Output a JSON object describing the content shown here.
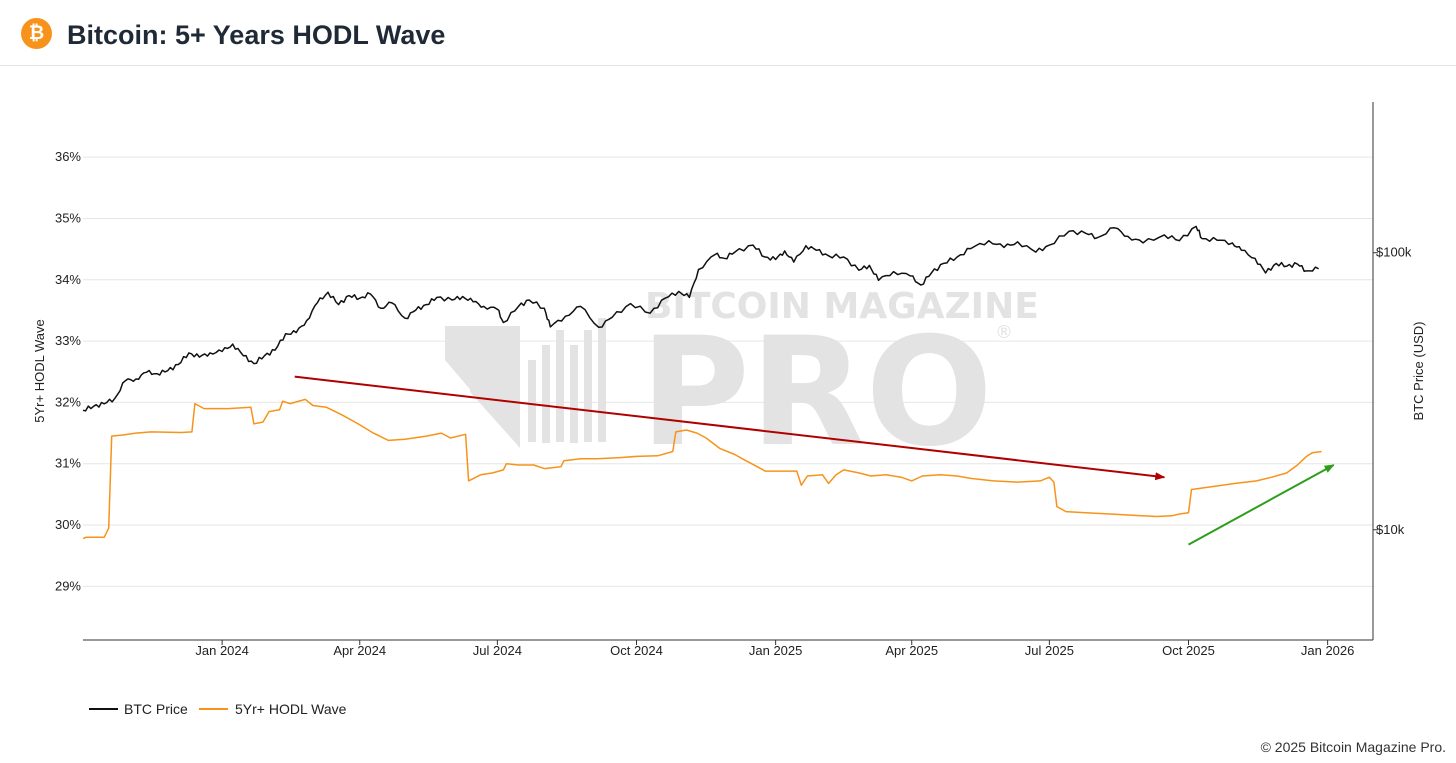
{
  "header": {
    "title": "Bitcoin: 5+ Years HODL Wave",
    "logo_glyph": "₿"
  },
  "watermark": {
    "line1": "BITCOIN MAGAZINE",
    "line2": "PRO",
    "reg": "®"
  },
  "footer": {
    "copyright": "© 2025 Bitcoin Magazine Pro."
  },
  "chart_data": {
    "type": "line",
    "title": "Bitcoin: 5+ Years HODL Wave",
    "x_start": "2023-10-01",
    "x_end": "2026-01-31",
    "x_ticks": [
      {
        "date": "2024-01-01",
        "label": "Jan 2024"
      },
      {
        "date": "2024-04-01",
        "label": "Apr 2024"
      },
      {
        "date": "2024-07-01",
        "label": "Jul 2024"
      },
      {
        "date": "2024-10-01",
        "label": "Oct 2024"
      },
      {
        "date": "2025-01-01",
        "label": "Jan 2025"
      },
      {
        "date": "2025-04-01",
        "label": "Apr 2025"
      },
      {
        "date": "2025-07-01",
        "label": "Jul 2025"
      },
      {
        "date": "2025-10-01",
        "label": "Oct 2025"
      },
      {
        "date": "2026-01-01",
        "label": "Jan 2026"
      }
    ],
    "y_left": {
      "label": "5Yr+ HODL Wave",
      "range": [
        28.125,
        36.9
      ],
      "ticks": [
        29,
        30,
        31,
        32,
        33,
        34,
        35,
        36
      ],
      "tick_labels": [
        "29%",
        "30%",
        "31%",
        "32%",
        "33%",
        "34%",
        "35%",
        "36%"
      ]
    },
    "y_right": {
      "label": "BTC Price (USD)",
      "scale": "log",
      "range": [
        4000,
        350000
      ],
      "ticks": [
        10000,
        100000
      ],
      "tick_labels": [
        "$10k",
        "$100k"
      ]
    },
    "series": [
      {
        "name": "BTC Price",
        "color": "#111111",
        "axis": "right",
        "points": [
          [
            "2023-10-01",
            27000
          ],
          [
            "2023-10-08",
            27900
          ],
          [
            "2023-10-15",
            28500
          ],
          [
            "2023-10-22",
            29800
          ],
          [
            "2023-10-29",
            34500
          ],
          [
            "2023-11-05",
            35000
          ],
          [
            "2023-11-12",
            37000
          ],
          [
            "2023-11-19",
            36600
          ],
          [
            "2023-11-26",
            37500
          ],
          [
            "2023-12-03",
            39500
          ],
          [
            "2023-12-10",
            43500
          ],
          [
            "2023-12-17",
            42000
          ],
          [
            "2023-12-24",
            43500
          ],
          [
            "2024-01-01",
            44000
          ],
          [
            "2024-01-08",
            46800
          ],
          [
            "2024-01-15",
            42500
          ],
          [
            "2024-01-22",
            39800
          ],
          [
            "2024-01-29",
            42500
          ],
          [
            "2024-02-05",
            44500
          ],
          [
            "2024-02-12",
            51000
          ],
          [
            "2024-02-19",
            51500
          ],
          [
            "2024-02-26",
            57000
          ],
          [
            "2024-03-04",
            66000
          ],
          [
            "2024-03-11",
            72000
          ],
          [
            "2024-03-18",
            65000
          ],
          [
            "2024-03-25",
            70000
          ],
          [
            "2024-04-01",
            68500
          ],
          [
            "2024-04-08",
            71000
          ],
          [
            "2024-04-15",
            63000
          ],
          [
            "2024-04-22",
            66000
          ],
          [
            "2024-05-01",
            58000
          ],
          [
            "2024-05-08",
            62000
          ],
          [
            "2024-05-15",
            65000
          ],
          [
            "2024-05-22",
            69000
          ],
          [
            "2024-06-01",
            67500
          ],
          [
            "2024-06-08",
            69500
          ],
          [
            "2024-06-15",
            66500
          ],
          [
            "2024-06-22",
            64000
          ],
          [
            "2024-07-01",
            62500
          ],
          [
            "2024-07-05",
            56000
          ],
          [
            "2024-07-15",
            64000
          ],
          [
            "2024-07-22",
            67500
          ],
          [
            "2024-08-01",
            63000
          ],
          [
            "2024-08-05",
            54000
          ],
          [
            "2024-08-15",
            59000
          ],
          [
            "2024-08-25",
            64000
          ],
          [
            "2024-09-06",
            53800
          ],
          [
            "2024-09-15",
            58500
          ],
          [
            "2024-09-27",
            65500
          ],
          [
            "2024-10-10",
            60500
          ],
          [
            "2024-10-20",
            68500
          ],
          [
            "2024-10-29",
            72500
          ],
          [
            "2024-11-05",
            69000
          ],
          [
            "2024-11-11",
            87000
          ],
          [
            "2024-11-22",
            98500
          ],
          [
            "2024-11-28",
            95500
          ],
          [
            "2024-12-05",
            100500
          ],
          [
            "2024-12-17",
            106500
          ],
          [
            "2024-12-25",
            96500
          ],
          [
            "2025-01-01",
            94500
          ],
          [
            "2025-01-07",
            101500
          ],
          [
            "2025-01-13",
            92500
          ],
          [
            "2025-01-21",
            106000
          ],
          [
            "2025-01-28",
            102000
          ],
          [
            "2025-02-05",
            97500
          ],
          [
            "2025-02-15",
            96500
          ],
          [
            "2025-02-25",
            86500
          ],
          [
            "2025-03-04",
            90000
          ],
          [
            "2025-03-10",
            79500
          ],
          [
            "2025-03-20",
            85500
          ],
          [
            "2025-03-31",
            82500
          ],
          [
            "2025-04-07",
            76500
          ],
          [
            "2025-04-14",
            84500
          ],
          [
            "2025-04-22",
            91500
          ],
          [
            "2025-05-01",
            96500
          ],
          [
            "2025-05-10",
            103500
          ],
          [
            "2025-05-22",
            110500
          ],
          [
            "2025-06-01",
            104500
          ],
          [
            "2025-06-10",
            109500
          ],
          [
            "2025-06-22",
            100500
          ],
          [
            "2025-07-01",
            106500
          ],
          [
            "2025-07-14",
            119500
          ],
          [
            "2025-07-25",
            117500
          ],
          [
            "2025-08-02",
            113500
          ],
          [
            "2025-08-13",
            123000
          ],
          [
            "2025-08-22",
            114500
          ],
          [
            "2025-09-01",
            108500
          ],
          [
            "2025-09-15",
            116000
          ],
          [
            "2025-09-25",
            110500
          ],
          [
            "2025-10-06",
            124500
          ],
          [
            "2025-10-10",
            112500
          ],
          [
            "2025-10-20",
            111000
          ],
          [
            "2025-10-30",
            108500
          ],
          [
            "2025-11-05",
            102000
          ],
          [
            "2025-11-14",
            95500
          ],
          [
            "2025-11-21",
            84500
          ],
          [
            "2025-11-28",
            91500
          ],
          [
            "2025-12-05",
            89500
          ],
          [
            "2025-12-12",
            91000
          ],
          [
            "2025-12-18",
            86000
          ],
          [
            "2025-12-26",
            87500
          ]
        ]
      },
      {
        "name": "5Yr+ HODL Wave",
        "color": "#f7931a",
        "axis": "left",
        "points": [
          [
            "2023-10-01",
            29.78
          ],
          [
            "2023-10-03",
            29.8
          ],
          [
            "2023-10-15",
            29.8
          ],
          [
            "2023-10-18",
            29.95
          ],
          [
            "2023-10-20",
            31.45
          ],
          [
            "2023-10-28",
            31.47
          ],
          [
            "2023-11-05",
            31.5
          ],
          [
            "2023-11-15",
            31.52
          ],
          [
            "2023-12-05",
            31.51
          ],
          [
            "2023-12-12",
            31.52
          ],
          [
            "2023-12-14",
            31.98
          ],
          [
            "2023-12-20",
            31.9
          ],
          [
            "2024-01-05",
            31.9
          ],
          [
            "2024-01-20",
            31.92
          ],
          [
            "2024-01-22",
            31.65
          ],
          [
            "2024-01-28",
            31.68
          ],
          [
            "2024-02-01",
            31.85
          ],
          [
            "2024-02-08",
            31.88
          ],
          [
            "2024-02-10",
            32.02
          ],
          [
            "2024-02-15",
            31.98
          ],
          [
            "2024-02-25",
            32.05
          ],
          [
            "2024-03-01",
            31.95
          ],
          [
            "2024-03-10",
            31.92
          ],
          [
            "2024-03-20",
            31.8
          ],
          [
            "2024-03-31",
            31.65
          ],
          [
            "2024-04-10",
            31.5
          ],
          [
            "2024-04-20",
            31.38
          ],
          [
            "2024-05-01",
            31.4
          ],
          [
            "2024-05-15",
            31.45
          ],
          [
            "2024-05-25",
            31.5
          ],
          [
            "2024-05-31",
            31.42
          ],
          [
            "2024-06-10",
            31.48
          ],
          [
            "2024-06-12",
            30.72
          ],
          [
            "2024-06-20",
            30.82
          ],
          [
            "2024-06-28",
            30.85
          ],
          [
            "2024-07-05",
            30.9
          ],
          [
            "2024-07-07",
            31.0
          ],
          [
            "2024-07-15",
            30.98
          ],
          [
            "2024-07-25",
            30.98
          ],
          [
            "2024-08-01",
            30.92
          ],
          [
            "2024-08-12",
            30.95
          ],
          [
            "2024-08-14",
            31.05
          ],
          [
            "2024-08-25",
            31.08
          ],
          [
            "2024-09-05",
            31.08
          ],
          [
            "2024-09-20",
            31.1
          ],
          [
            "2024-10-01",
            31.12
          ],
          [
            "2024-10-15",
            31.13
          ],
          [
            "2024-10-25",
            31.2
          ],
          [
            "2024-10-27",
            31.52
          ],
          [
            "2024-11-03",
            31.55
          ],
          [
            "2024-11-10",
            31.5
          ],
          [
            "2024-11-16",
            31.42
          ],
          [
            "2024-11-25",
            31.25
          ],
          [
            "2024-12-05",
            31.15
          ],
          [
            "2024-12-10",
            31.08
          ],
          [
            "2024-12-20",
            30.95
          ],
          [
            "2024-12-25",
            30.88
          ],
          [
            "2025-01-05",
            30.88
          ],
          [
            "2025-01-15",
            30.88
          ],
          [
            "2025-01-18",
            30.65
          ],
          [
            "2025-01-22",
            30.8
          ],
          [
            "2025-02-01",
            30.82
          ],
          [
            "2025-02-05",
            30.68
          ],
          [
            "2025-02-10",
            30.82
          ],
          [
            "2025-02-15",
            30.9
          ],
          [
            "2025-02-25",
            30.85
          ],
          [
            "2025-03-05",
            30.8
          ],
          [
            "2025-03-15",
            30.82
          ],
          [
            "2025-03-25",
            30.78
          ],
          [
            "2025-04-01",
            30.72
          ],
          [
            "2025-04-08",
            30.8
          ],
          [
            "2025-04-20",
            30.82
          ],
          [
            "2025-05-01",
            30.8
          ],
          [
            "2025-05-10",
            30.76
          ],
          [
            "2025-05-25",
            30.72
          ],
          [
            "2025-06-10",
            30.7
          ],
          [
            "2025-06-25",
            30.72
          ],
          [
            "2025-07-01",
            30.78
          ],
          [
            "2025-07-04",
            30.7
          ],
          [
            "2025-07-06",
            30.3
          ],
          [
            "2025-07-12",
            30.22
          ],
          [
            "2025-07-25",
            30.2
          ],
          [
            "2025-08-10",
            30.18
          ],
          [
            "2025-08-25",
            30.16
          ],
          [
            "2025-09-10",
            30.14
          ],
          [
            "2025-09-20",
            30.15
          ],
          [
            "2025-09-25",
            30.18
          ],
          [
            "2025-10-01",
            30.2
          ],
          [
            "2025-10-03",
            30.58
          ],
          [
            "2025-10-15",
            30.62
          ],
          [
            "2025-11-01",
            30.68
          ],
          [
            "2025-11-15",
            30.72
          ],
          [
            "2025-11-25",
            30.78
          ],
          [
            "2025-12-05",
            30.85
          ],
          [
            "2025-12-12",
            30.98
          ],
          [
            "2025-12-18",
            31.12
          ],
          [
            "2025-12-22",
            31.18
          ],
          [
            "2025-12-28",
            31.2
          ]
        ]
      }
    ],
    "annotations": [
      {
        "type": "arrow",
        "color": "#b00000",
        "from": [
          "2024-02-18",
          32.42
        ],
        "to": [
          "2025-09-15",
          30.78
        ],
        "meaning": "decline"
      },
      {
        "type": "arrow",
        "color": "#2d9e1a",
        "from": [
          "2025-10-01",
          29.68
        ],
        "to": [
          "2026-01-05",
          30.98
        ],
        "meaning": "rise"
      }
    ],
    "legend": [
      {
        "name": "BTC Price",
        "color": "#111111"
      },
      {
        "name": "5Yr+ HODL Wave",
        "color": "#f7931a"
      }
    ],
    "legend_position": "bottom-left",
    "grid": true
  }
}
